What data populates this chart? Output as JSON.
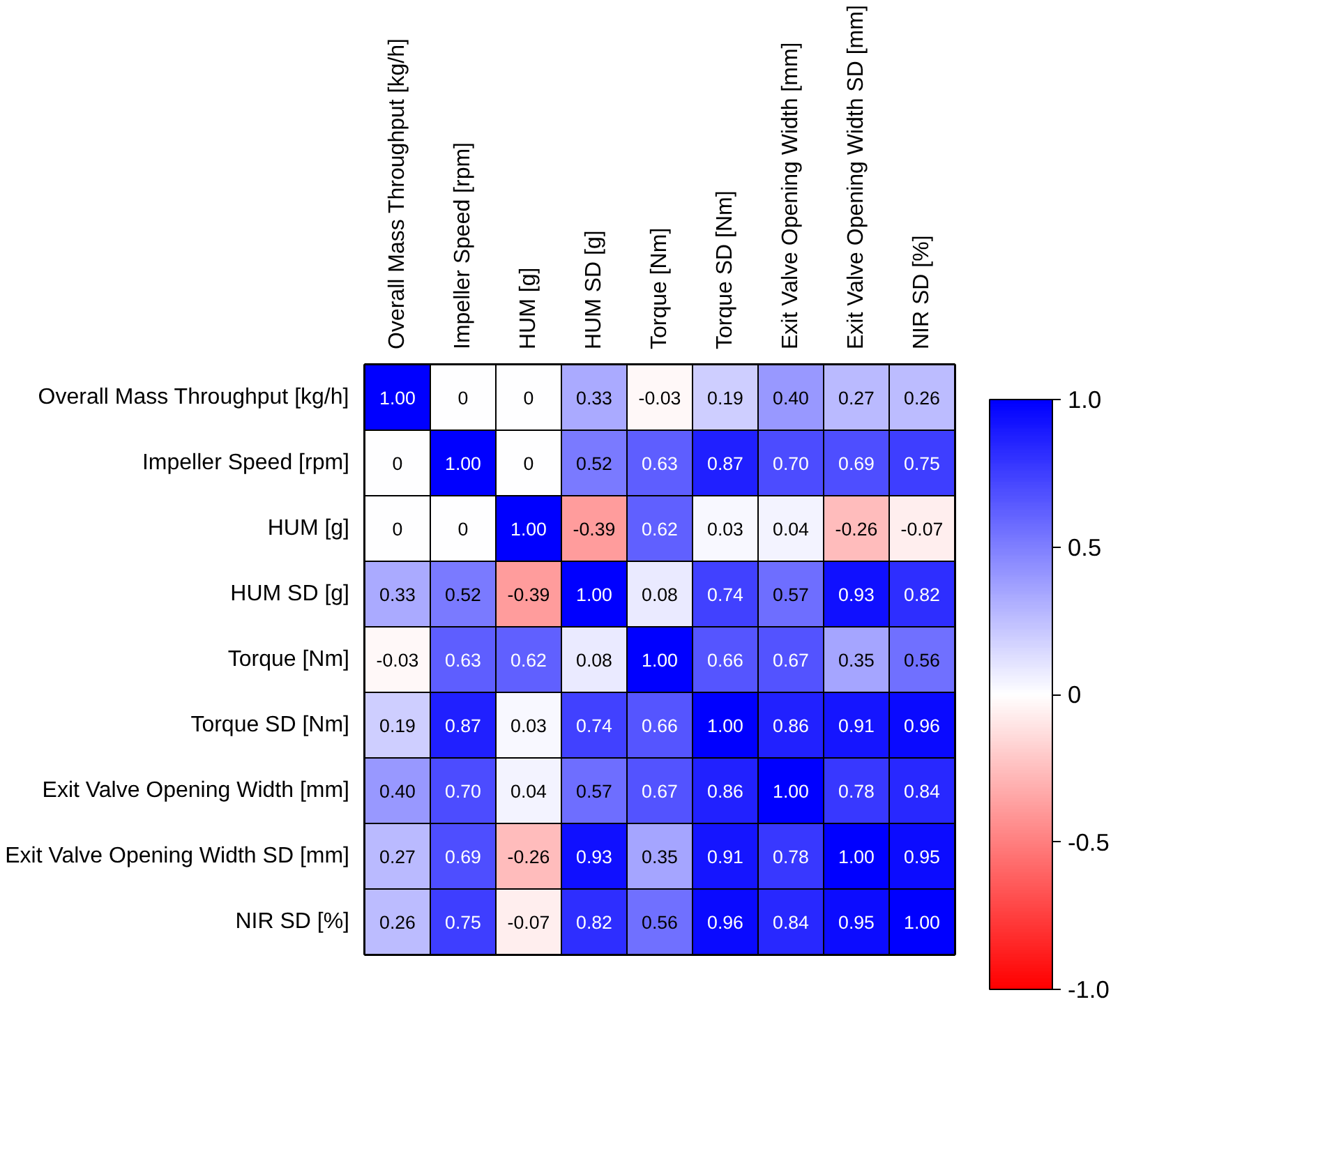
{
  "chart_data": {
    "type": "heatmap",
    "categories": [
      "Overall Mass Throughput [kg/h]",
      "Impeller Speed [rpm]",
      "HUM [g]",
      "HUM SD [g]",
      "Torque [Nm]",
      "Torque SD [Nm]",
      "Exit Valve Opening Width [mm]",
      "Exit Valve Opening Width SD [mm]",
      "NIR SD [%]"
    ],
    "y_categories": [
      "Overall Mass Throughput [kg/h]",
      "Impeller Speed [rpm]",
      "HUM [g]",
      "HUM SD [g]",
      "Torque [Nm]",
      "Torque SD [Nm]",
      "Exit Valve Opening Width [mm]",
      "Exit Valve Opening Width SD [mm]",
      "NIR SD [%]"
    ],
    "cells": [
      [
        1.0,
        0,
        0,
        0.33,
        -0.03,
        0.19,
        0.4,
        0.27,
        0.26
      ],
      [
        0,
        1.0,
        0,
        0.52,
        0.63,
        0.87,
        0.7,
        0.69,
        0.75
      ],
      [
        0,
        0,
        1.0,
        -0.39,
        0.62,
        0.03,
        0.04,
        -0.26,
        -0.07
      ],
      [
        0.33,
        0.52,
        -0.39,
        1.0,
        0.08,
        0.74,
        0.57,
        0.93,
        0.82
      ],
      [
        -0.03,
        0.63,
        0.62,
        0.08,
        1.0,
        0.66,
        0.67,
        0.35,
        0.56
      ],
      [
        0.19,
        0.87,
        0.03,
        0.74,
        0.66,
        1.0,
        0.86,
        0.91,
        0.96
      ],
      [
        0.4,
        0.7,
        0.04,
        0.57,
        0.67,
        0.86,
        1.0,
        0.78,
        0.84
      ],
      [
        0.27,
        0.69,
        -0.26,
        0.93,
        0.35,
        0.91,
        0.78,
        1.0,
        0.95
      ],
      [
        0.26,
        0.75,
        -0.07,
        0.82,
        0.56,
        0.96,
        0.84,
        0.95,
        1.0
      ]
    ],
    "cell_labels": [
      [
        "1.00",
        "0",
        "0",
        "0.33",
        "-0.03",
        "0.19",
        "0.40",
        "0.27",
        "0.26"
      ],
      [
        "0",
        "1.00",
        "0",
        "0.52",
        "0.63",
        "0.87",
        "0.70",
        "0.69",
        "0.75"
      ],
      [
        "0",
        "0",
        "1.00",
        "-0.39",
        "0.62",
        "0.03",
        "0.04",
        "-0.26",
        "-0.07"
      ],
      [
        "0.33",
        "0.52",
        "-0.39",
        "1.00",
        "0.08",
        "0.74",
        "0.57",
        "0.93",
        "0.82"
      ],
      [
        "-0.03",
        "0.63",
        "0.62",
        "0.08",
        "1.00",
        "0.66",
        "0.67",
        "0.35",
        "0.56"
      ],
      [
        "0.19",
        "0.87",
        "0.03",
        "0.74",
        "0.66",
        "1.00",
        "0.86",
        "0.91",
        "0.96"
      ],
      [
        "0.40",
        "0.70",
        "0.04",
        "0.57",
        "0.67",
        "0.86",
        "1.00",
        "0.78",
        "0.84"
      ],
      [
        "0.27",
        "0.69",
        "-0.26",
        "0.93",
        "0.35",
        "0.91",
        "0.78",
        "1.00",
        "0.95"
      ],
      [
        "0.26",
        "0.75",
        "-0.07",
        "0.82",
        "0.56",
        "0.96",
        "0.84",
        "0.95",
        "1.00"
      ]
    ],
    "clim": [
      -1,
      1
    ],
    "cticks": [
      {
        "value": 1,
        "label": "1.0"
      },
      0.5,
      0,
      -0.5,
      {
        "value": -1,
        "label": "-1.0"
      }
    ]
  }
}
